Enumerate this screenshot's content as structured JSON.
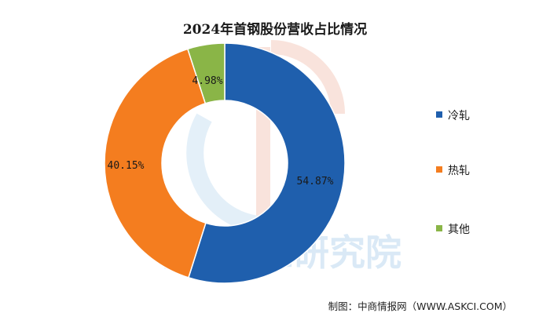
{
  "chart_data": {
    "type": "pie",
    "donut": true,
    "title": "2024年首钢股份营收占比情况",
    "slices": [
      {
        "label": "冷轧",
        "value": 54.87,
        "value_label": "54.87%",
        "color": "#1f5fad"
      },
      {
        "label": "热轧",
        "value": 40.15,
        "value_label": "40.15%",
        "color": "#f47d1f"
      },
      {
        "label": "其他",
        "value": 4.98,
        "value_label": "4.98%",
        "color": "#8ab547"
      }
    ],
    "legend_position": "right"
  },
  "watermark": {
    "text": "中商产业研究院"
  },
  "footer": {
    "source": "制图：中商情报网（WWW.ASKCI.COM）"
  }
}
